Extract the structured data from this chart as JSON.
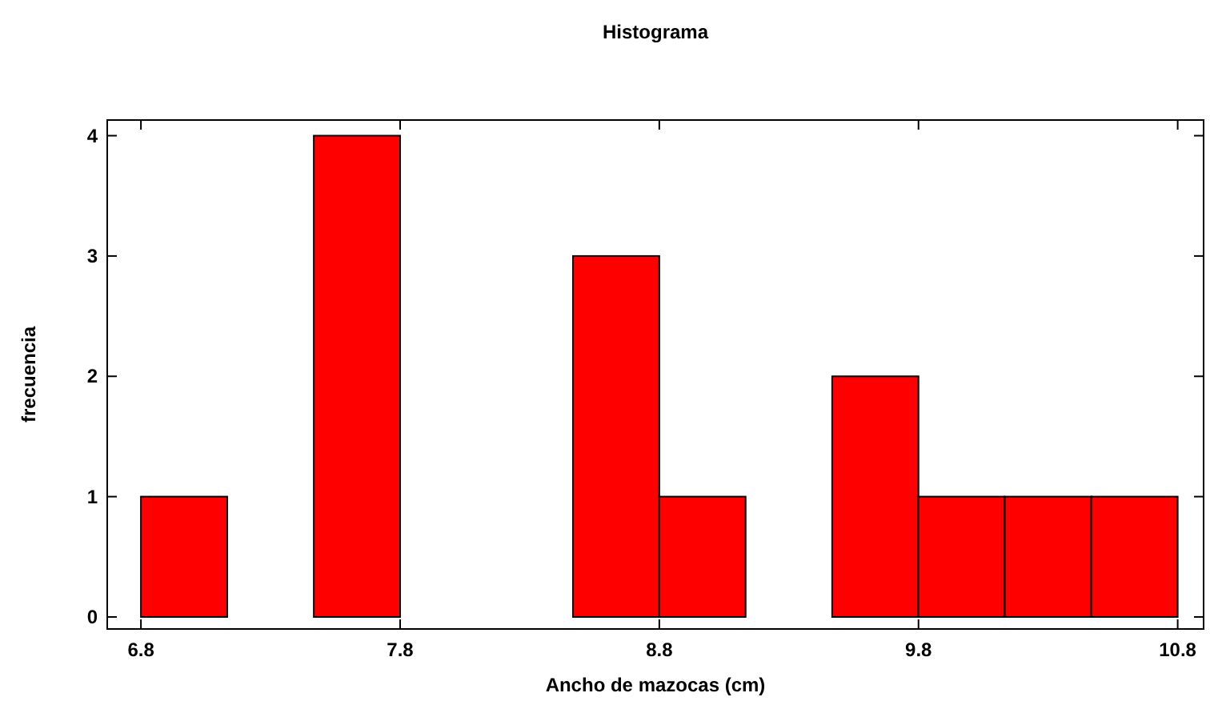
{
  "chart_data": {
    "type": "histogram",
    "title": "Histograma",
    "xlabel": "Ancho de mazocas (cm)",
    "ylabel": "frecuencia",
    "bins": [
      6.8,
      7.133,
      7.467,
      7.8,
      8.133,
      8.467,
      8.8,
      9.133,
      9.467,
      9.8,
      10.133,
      10.467,
      10.8
    ],
    "values": [
      1,
      0,
      4,
      0,
      0,
      3,
      1,
      0,
      2,
      1,
      1,
      1
    ],
    "color": "#ff0000",
    "xlim": [
      6.67,
      10.9
    ],
    "xticks": [
      6.8,
      7.8,
      8.8,
      9.8,
      10.8
    ],
    "ylim": [
      -0.1,
      4.13
    ],
    "yticks": [
      0,
      1,
      2,
      3,
      4
    ],
    "grid": false
  }
}
